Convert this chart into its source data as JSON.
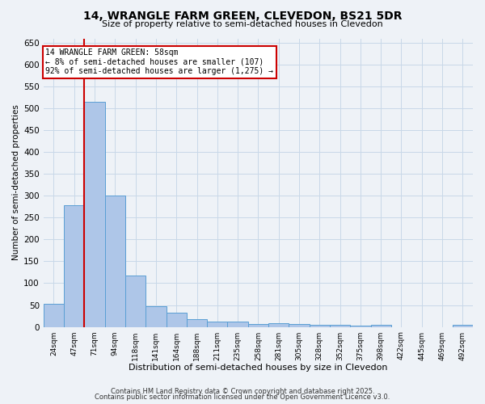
{
  "title_line1": "14, WRANGLE FARM GREEN, CLEVEDON, BS21 5DR",
  "title_line2": "Size of property relative to semi-detached houses in Clevedon",
  "xlabel": "Distribution of semi-detached houses by size in Clevedon",
  "ylabel": "Number of semi-detached properties",
  "categories": [
    "24sqm",
    "47sqm",
    "71sqm",
    "94sqm",
    "118sqm",
    "141sqm",
    "164sqm",
    "188sqm",
    "211sqm",
    "235sqm",
    "258sqm",
    "281sqm",
    "305sqm",
    "328sqm",
    "352sqm",
    "375sqm",
    "398sqm",
    "422sqm",
    "445sqm",
    "469sqm",
    "492sqm"
  ],
  "values": [
    52,
    278,
    515,
    300,
    117,
    47,
    32,
    18,
    13,
    12,
    6,
    8,
    7,
    5,
    5,
    3,
    5,
    0,
    0,
    0,
    5
  ],
  "bar_color": "#aec6e8",
  "bar_edge_color": "#5a9fd4",
  "annotation_text": "14 WRANGLE FARM GREEN: 58sqm\n← 8% of semi-detached houses are smaller (107)\n92% of semi-detached houses are larger (1,275) →",
  "annotation_box_color": "#ffffff",
  "annotation_box_edge": "#cc0000",
  "vline_color": "#cc0000",
  "vline_x_index": 1.5,
  "ylim": [
    0,
    660
  ],
  "yticks": [
    0,
    50,
    100,
    150,
    200,
    250,
    300,
    350,
    400,
    450,
    500,
    550,
    600,
    650
  ],
  "grid_color": "#c8d8e8",
  "background_color": "#eef2f7",
  "footer_line1": "Contains HM Land Registry data © Crown copyright and database right 2025.",
  "footer_line2": "Contains public sector information licensed under the Open Government Licence v3.0."
}
